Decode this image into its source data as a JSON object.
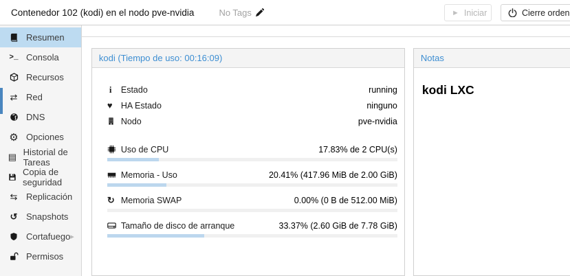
{
  "topbar": {
    "title": "Contenedor 102 (kodi) en el nodo pve-nvidia",
    "tags": "No Tags",
    "start_button": "Iniciar",
    "shutdown_button": "Cierre ordenado"
  },
  "sidebar": {
    "items": [
      {
        "label": "Resumen",
        "selected": true
      },
      {
        "label": "Consola"
      },
      {
        "label": "Recursos"
      },
      {
        "label": "Red"
      },
      {
        "label": "DNS"
      },
      {
        "label": "Opciones"
      },
      {
        "label": "Historial de Tareas"
      },
      {
        "label": "Copia de seguridad"
      },
      {
        "label": "Replicación"
      },
      {
        "label": "Snapshots"
      },
      {
        "label": "Cortafuego",
        "has_submenu": true
      },
      {
        "label": "Permisos"
      }
    ]
  },
  "status_panel": {
    "title": "kodi (Tiempo de uso: 00:16:09)",
    "rows": [
      {
        "label": "Estado",
        "value": "running"
      },
      {
        "label": "HA Estado",
        "value": "ninguno"
      },
      {
        "label": "Nodo",
        "value": "pve-nvidia"
      }
    ],
    "meters": [
      {
        "label": "Uso de CPU",
        "value": "17.83% de 2 CPU(s)",
        "percent": 17.83
      },
      {
        "label": "Memoria - Uso",
        "value": "20.41% (417.96 MiB de 2.00 GiB)",
        "percent": 20.41
      },
      {
        "label": "Memoria SWAP",
        "value": "0.00% (0 B de 512.00 MiB)",
        "percent": 0
      },
      {
        "label": "Tamaño de disco de arranque",
        "value": "33.37% (2.60 GiB de 7.78 GiB)",
        "percent": 33.37
      }
    ]
  },
  "notes_panel": {
    "title": "Notas",
    "content": "kodi LXC"
  },
  "colors": {
    "accent_blue": "#3d8ed2",
    "selected_item_bg": "#bddbf1",
    "meter_fill": "#bcd7ee",
    "scroll_thumb": "#4a86bf"
  }
}
